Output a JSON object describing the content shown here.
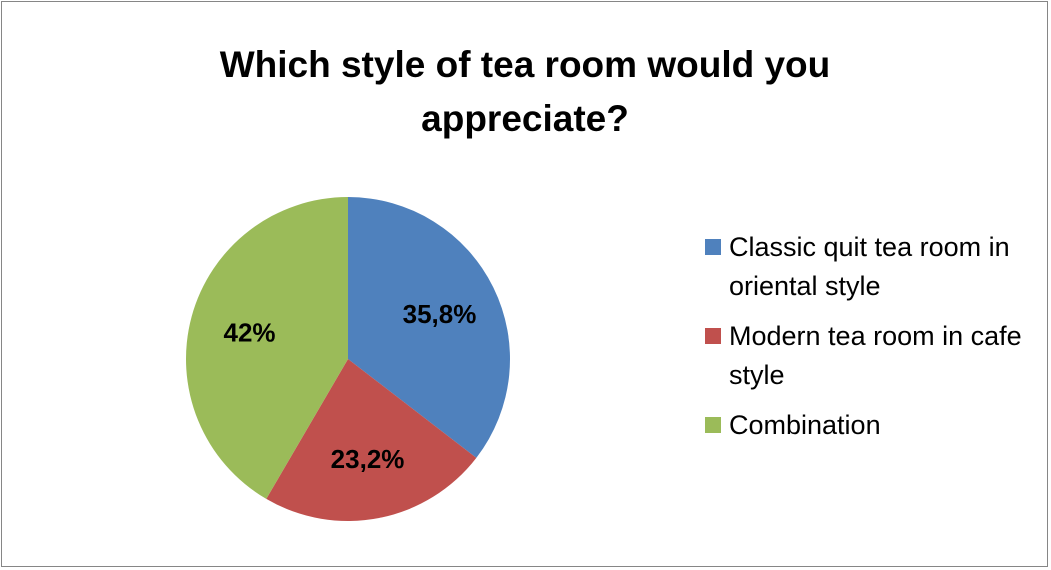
{
  "chart_data": {
    "type": "pie",
    "title": "Which style of tea room would you appreciate?",
    "slices": [
      {
        "label": "Classic quit tea room in oriental style",
        "value": 35.8,
        "display": "35,8%",
        "color": "#4F81BD"
      },
      {
        "label": "Modern tea room in cafe style",
        "value": 23.2,
        "display": "23,2%",
        "color": "#C0504D"
      },
      {
        "label": "Combination",
        "value": 42,
        "display": "42%",
        "color": "#9BBB59"
      }
    ],
    "legend_position": "right"
  }
}
